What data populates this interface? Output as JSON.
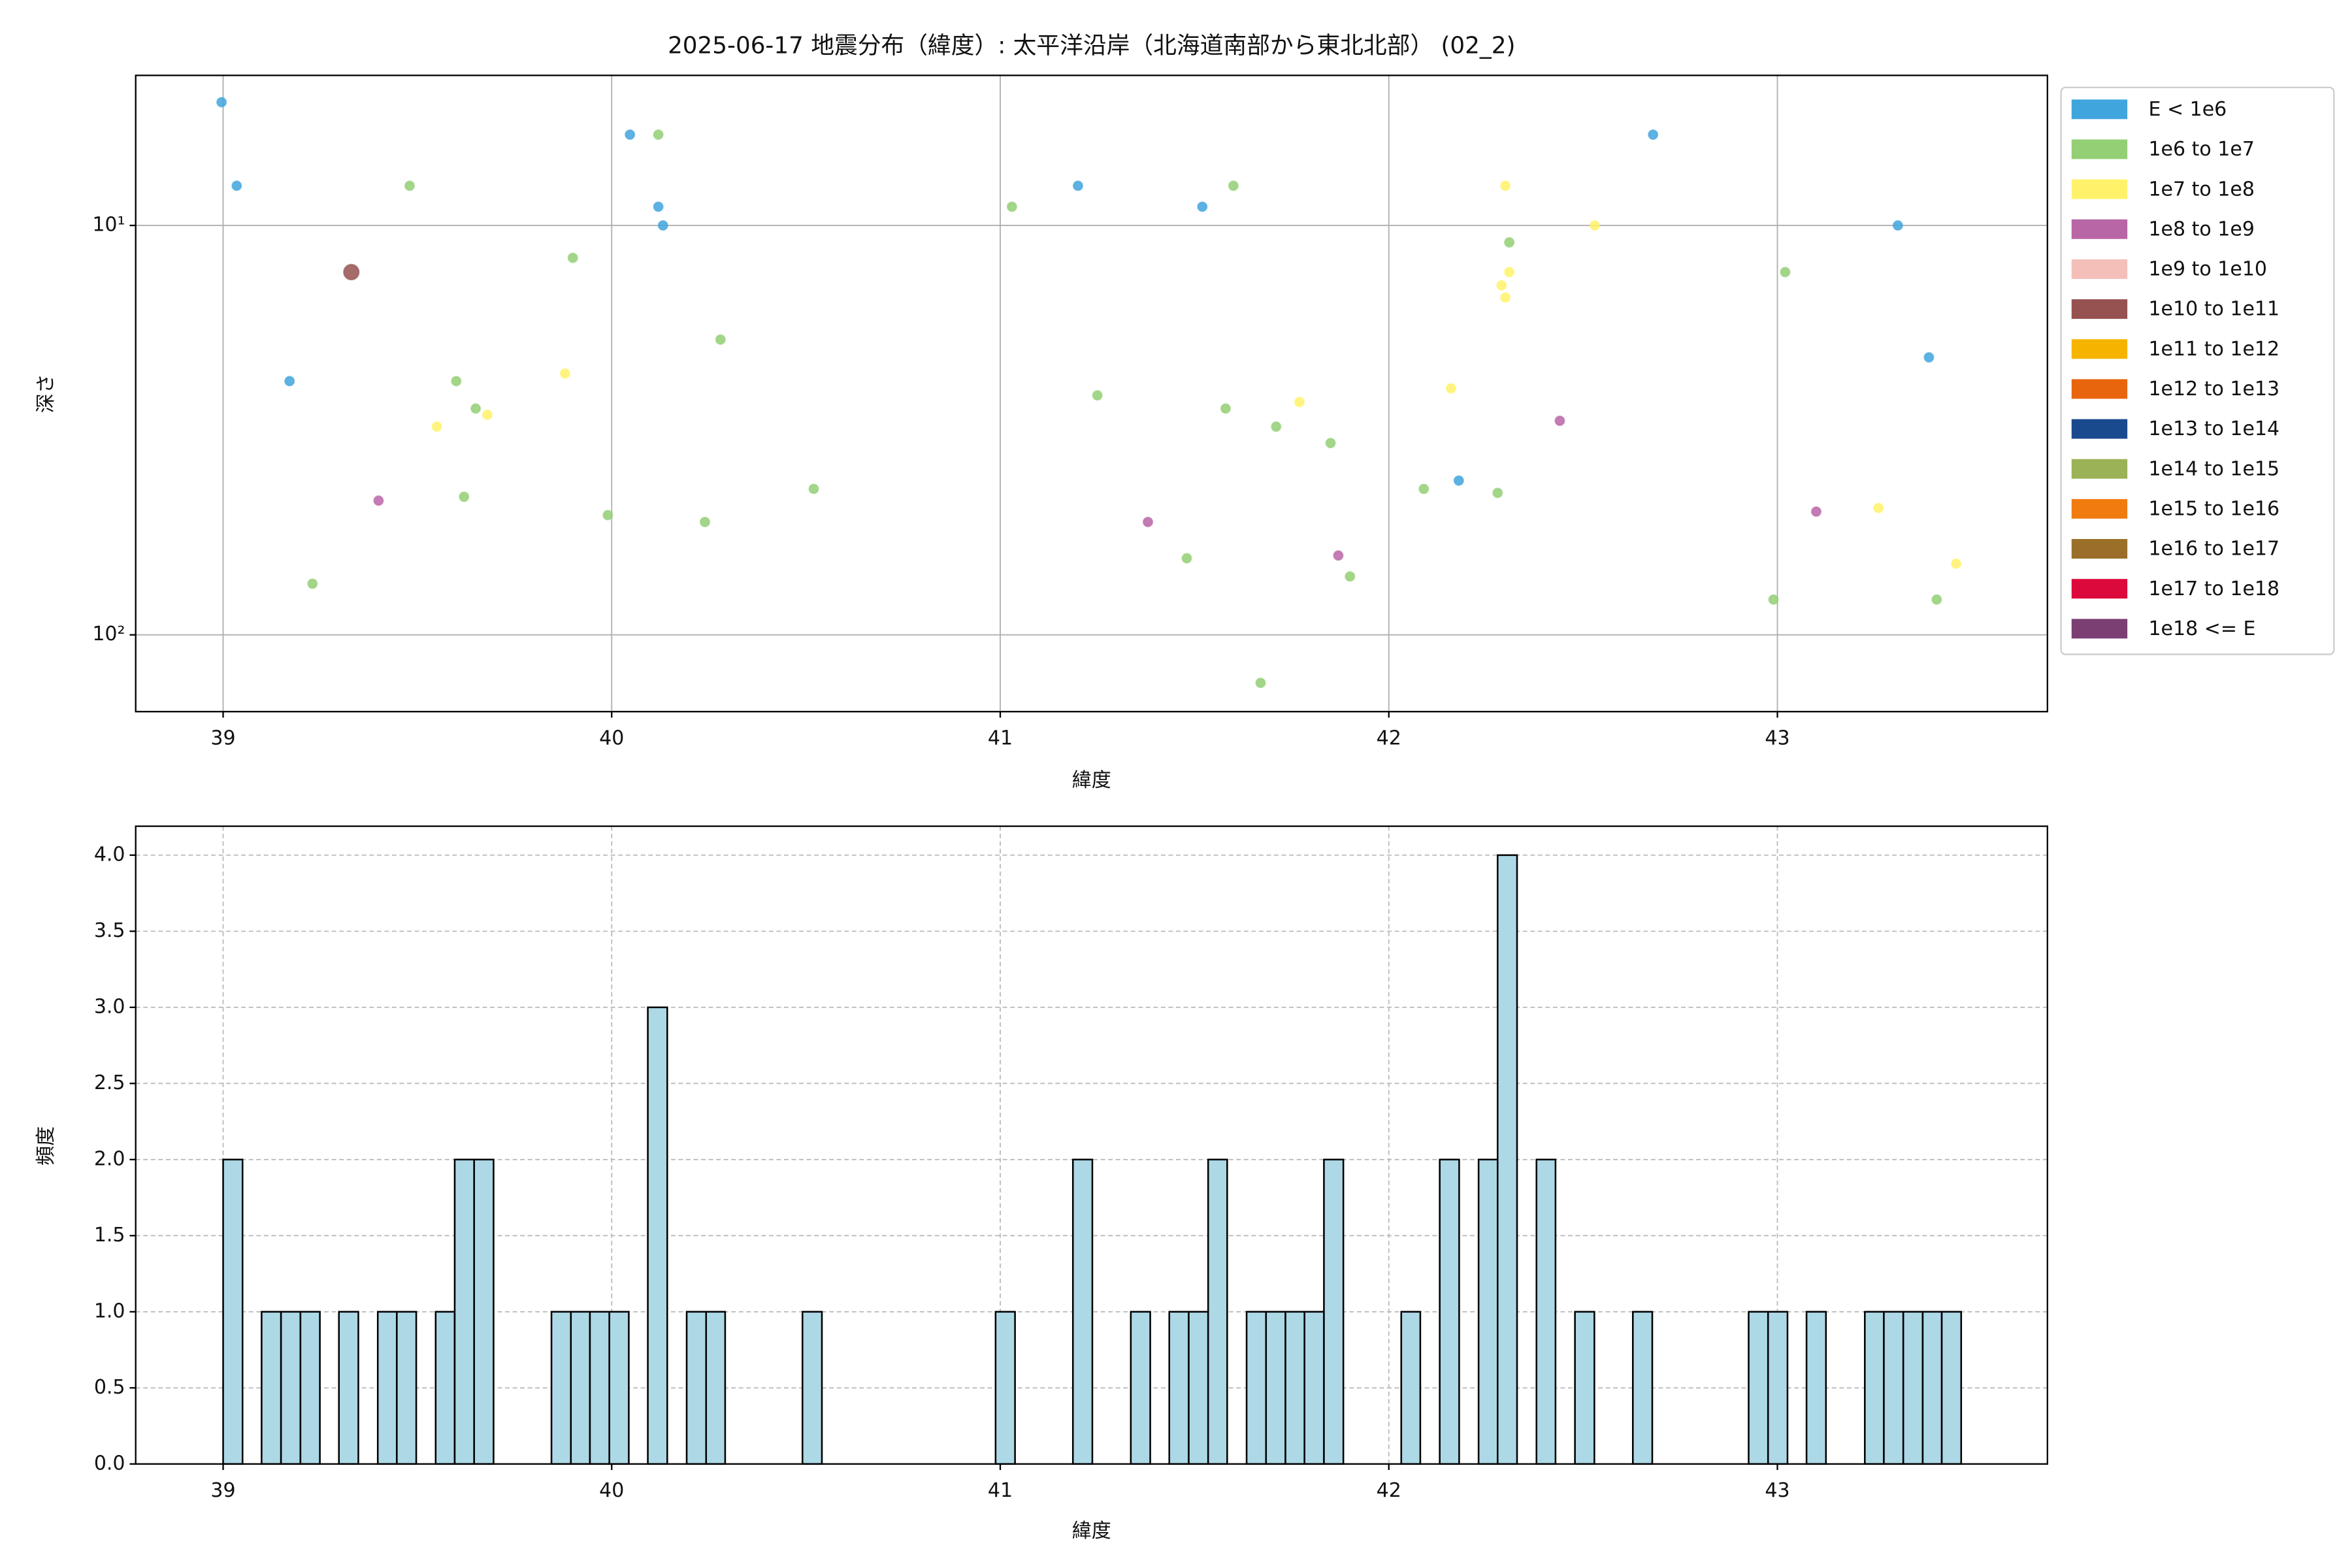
{
  "chart_data": [
    {
      "type": "scatter",
      "title": "2025-06-17 地震分布（緯度）: 太平洋沿岸（北海道南部から東北北部） (02_2)",
      "x_label": "緯度",
      "y_label": "深さ",
      "xlim": [
        38.775,
        43.695
      ],
      "xticks": [
        39,
        40,
        41,
        42,
        43
      ],
      "ylim": [
        154,
        4.3
      ],
      "yscale": "log",
      "yticks": [
        {
          "value": 10,
          "label": "10¹"
        },
        {
          "value": 100,
          "label": "10²"
        }
      ],
      "grid": true,
      "grid_linestyle": "solid",
      "legend": "outside right",
      "series": [
        {
          "name": "E < 1e6",
          "color": "#41a5dd",
          "x": [
            38.996,
            39.035,
            39.171,
            40.047,
            40.12,
            40.132,
            41.2,
            41.52,
            42.68,
            42.18,
            43.31,
            43.39
          ],
          "values": [
            5,
            8,
            24,
            6,
            9,
            10,
            8,
            9,
            6,
            42,
            10,
            21
          ]
        },
        {
          "name": "1e6 to 1e7",
          "color": "#93cf74",
          "x": [
            39.48,
            40.12,
            39.9,
            39.6,
            39.65,
            39.62,
            39.23,
            39.99,
            40.28,
            40.24,
            40.52,
            41.03,
            41.25,
            41.6,
            41.58,
            41.71,
            41.85,
            41.48,
            41.67,
            41.9,
            42.09,
            42.28,
            42.31,
            43.02,
            42.99,
            43.41
          ],
          "values": [
            8,
            6,
            12,
            24,
            28,
            46,
            75,
            51,
            19,
            53,
            44,
            9,
            26,
            8,
            28,
            31,
            34,
            65,
            131,
            72,
            44,
            45,
            11,
            13,
            82,
            82
          ]
        },
        {
          "name": "1e7 to 1e8",
          "color": "#fff26a",
          "x": [
            42.3,
            42.53,
            42.31,
            42.29,
            42.3,
            42.16,
            39.88,
            39.55,
            39.68,
            41.77,
            43.26,
            43.46
          ],
          "values": [
            8,
            10,
            13,
            14,
            15,
            25,
            23,
            31,
            29,
            27,
            49,
            67
          ]
        },
        {
          "name": "1e8 to 1e9",
          "color": "#b966a7",
          "x": [
            39.4,
            41.38,
            41.87,
            42.44,
            43.1
          ],
          "values": [
            47,
            53,
            64,
            30,
            50
          ]
        },
        {
          "name": "1e9 to 1e10",
          "color": "#f4bfb8",
          "x": [],
          "values": []
        },
        {
          "name": "1e10 to 1e11",
          "color": "#955251",
          "x": [
            39.33
          ],
          "values": [
            13
          ]
        },
        {
          "name": "1e11 to 1e12",
          "color": "#f6b400",
          "x": [],
          "values": []
        },
        {
          "name": "1e12 to 1e13",
          "color": "#e8650d",
          "x": [],
          "values": []
        },
        {
          "name": "1e13 to 1e14",
          "color": "#1a4a8e",
          "x": [],
          "values": []
        },
        {
          "name": "1e14 to 1e15",
          "color": "#9bb256",
          "x": [],
          "values": []
        },
        {
          "name": "1e15 to 1e16",
          "color": "#f07c10",
          "x": [],
          "values": []
        },
        {
          "name": "1e16 to 1e17",
          "color": "#9b6f29",
          "x": [],
          "values": []
        },
        {
          "name": "1e17 to 1e18",
          "color": "#dc0a3c",
          "x": [],
          "values": []
        },
        {
          "name": "1e18 <= E",
          "color": "#7b3f73",
          "x": [],
          "values": []
        }
      ]
    },
    {
      "type": "histogram",
      "x_label": "緯度",
      "y_label": "頻度",
      "color": "#add8e6",
      "xlim": [
        38.775,
        43.695
      ],
      "xticks": [
        39,
        40,
        41,
        42,
        43
      ],
      "ylim": [
        0,
        4.19
      ],
      "yticks": [
        {
          "value": 0,
          "label": "0.0"
        },
        {
          "value": 0.5,
          "label": "0.5"
        },
        {
          "value": 1,
          "label": "1.0"
        },
        {
          "value": 1.5,
          "label": "1.5"
        },
        {
          "value": 2,
          "label": "2.0"
        },
        {
          "value": 2.5,
          "label": "2.5"
        },
        {
          "value": 3,
          "label": "3.0"
        },
        {
          "value": 3.5,
          "label": "3.5"
        },
        {
          "value": 4,
          "label": "4.0"
        }
      ],
      "grid": true,
      "grid_linestyle": "dashed",
      "bins": [
        39.0,
        39.05,
        39.099,
        39.149,
        39.199,
        39.249,
        39.298,
        39.348,
        39.398,
        39.447,
        39.497,
        39.547,
        39.596,
        39.646,
        39.696,
        39.746,
        39.795,
        39.845,
        39.895,
        39.944,
        39.994,
        40.044,
        40.093,
        40.143,
        40.193,
        40.243,
        40.292,
        40.342,
        40.392,
        40.441,
        40.491,
        40.541,
        40.59,
        40.64,
        40.69,
        40.74,
        40.789,
        40.839,
        40.889,
        40.938,
        40.988,
        41.038,
        41.087,
        41.137,
        41.187,
        41.237,
        41.286,
        41.336,
        41.386,
        41.435,
        41.485,
        41.535,
        41.584,
        41.634,
        41.684,
        41.734,
        41.783,
        41.833,
        41.883,
        41.932,
        41.982,
        42.032,
        42.081,
        42.131,
        42.181,
        42.231,
        42.28,
        42.33,
        42.38,
        42.429,
        42.479,
        42.529,
        42.578,
        42.628,
        42.678,
        42.728,
        42.777,
        42.827,
        42.877,
        42.926,
        42.976,
        43.026,
        43.075,
        43.125,
        43.175,
        43.225,
        43.274,
        43.324,
        43.374,
        43.423,
        43.473
      ],
      "values": [
        2,
        0,
        1,
        1,
        1,
        0,
        1,
        0,
        1,
        1,
        0,
        1,
        2,
        2,
        0,
        0,
        0,
        1,
        1,
        1,
        1,
        0,
        3,
        0,
        1,
        1,
        0,
        0,
        0,
        0,
        1,
        0,
        0,
        0,
        0,
        0,
        0,
        0,
        0,
        0,
        1,
        0,
        0,
        0,
        2,
        0,
        0,
        1,
        0,
        1,
        1,
        2,
        0,
        1,
        1,
        1,
        1,
        2,
        0,
        0,
        0,
        1,
        0,
        2,
        0,
        2,
        4,
        0,
        2,
        0,
        1,
        0,
        0,
        1,
        0,
        0,
        0,
        0,
        0,
        1,
        1,
        0,
        1,
        0,
        0,
        1,
        1,
        1,
        1,
        1
      ]
    }
  ]
}
